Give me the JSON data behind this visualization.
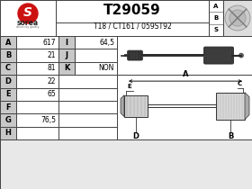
{
  "part_number": "T29059",
  "subtitle": "T18 / CT161 / 059ST92",
  "brand": "sorea",
  "abs_labels": [
    "A",
    "B",
    "S"
  ],
  "table_left": [
    [
      "A",
      "617"
    ],
    [
      "B",
      "21"
    ],
    [
      "C",
      "81"
    ],
    [
      "D",
      "22"
    ],
    [
      "E",
      "65"
    ],
    [
      "F",
      ""
    ],
    [
      "G",
      "76,5"
    ],
    [
      "H",
      ""
    ]
  ],
  "table_right": [
    [
      "I",
      "64,5"
    ],
    [
      "J",
      ""
    ],
    [
      "K",
      "NON"
    ]
  ],
  "bg_color": "#e8e8e8",
  "white": "#ffffff",
  "border_color": "#444444",
  "label_bg": "#c8c8c8",
  "text_color": "#000000",
  "axle_dark": "#2a2a2a",
  "axle_mid": "#555555",
  "axle_light": "#888888",
  "schematic_fill": "#aaaaaa",
  "schematic_line": "#333333"
}
